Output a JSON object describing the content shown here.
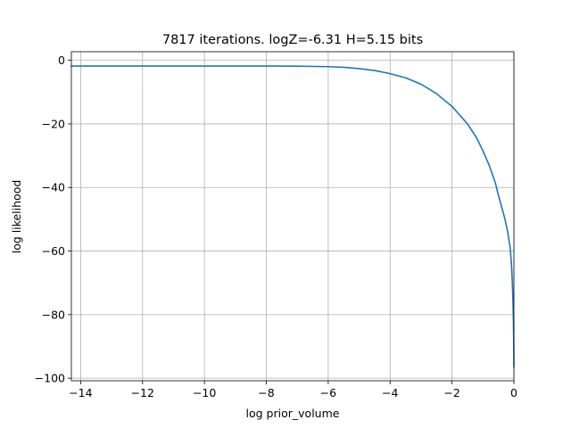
{
  "chart_data": {
    "type": "line",
    "title": "7817 iterations. logZ=-6.31 H=5.15 bits",
    "xlabel": "log prior_volume",
    "ylabel": "log likelihood",
    "xlim": [
      -14.3,
      0.0
    ],
    "ylim": [
      -100.8,
      2.7
    ],
    "grid": true,
    "x_ticks": [
      -14,
      -12,
      -10,
      -8,
      -6,
      -4,
      -2,
      0
    ],
    "x_tick_labels": [
      "−14",
      "−12",
      "−10",
      "−8",
      "−6",
      "−4",
      "−2",
      "0"
    ],
    "y_ticks": [
      0,
      -20,
      -40,
      -60,
      -80,
      -100
    ],
    "y_tick_labels": [
      "0",
      "−20",
      "−40",
      "−60",
      "−80",
      "−100"
    ],
    "series": [
      {
        "color": "#1f77b4",
        "x": [
          -14.3,
          -12,
          -10,
          -8,
          -7,
          -6,
          -5.5,
          -5,
          -4.5,
          -4,
          -3.5,
          -3,
          -2.5,
          -2,
          -1.5,
          -1.2,
          -1,
          -0.8,
          -0.6,
          -0.5,
          -0.4,
          -0.3,
          -0.2,
          -0.12,
          -0.08,
          -0.05,
          -0.03,
          -0.015,
          -0.005,
          0
        ],
        "values": [
          -1.8,
          -1.8,
          -1.8,
          -1.8,
          -1.85,
          -2.0,
          -2.2,
          -2.6,
          -3.2,
          -4.2,
          -5.5,
          -7.5,
          -10.5,
          -14.5,
          -20.0,
          -24.5,
          -28.5,
          -33.0,
          -38.5,
          -42.5,
          -46.0,
          -49.5,
          -54.0,
          -59.0,
          -64.0,
          -70.0,
          -76.0,
          -82.0,
          -90.0,
          -96.5
        ]
      }
    ]
  }
}
